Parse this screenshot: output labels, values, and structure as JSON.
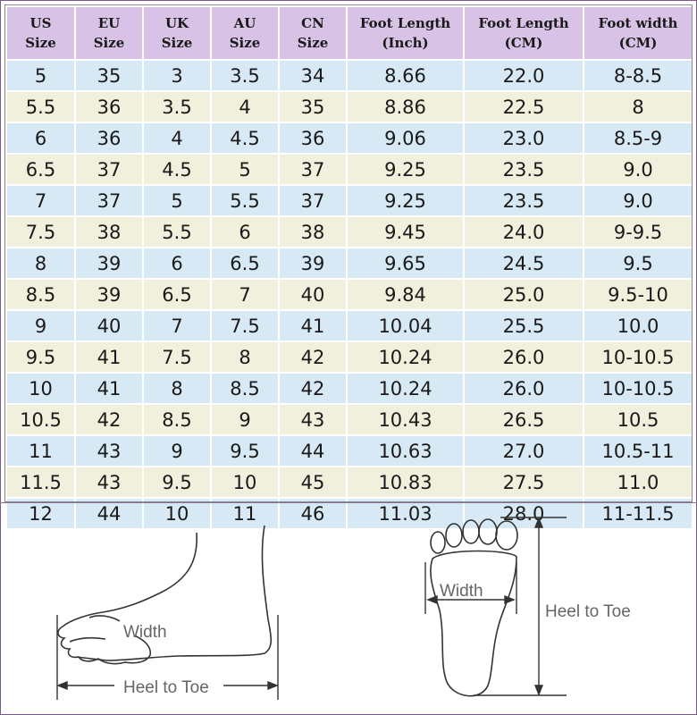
{
  "table": {
    "headers": [
      {
        "line1": "US",
        "line2": "Size"
      },
      {
        "line1": "EU",
        "line2": "Size"
      },
      {
        "line1": "UK",
        "line2": "Size"
      },
      {
        "line1": "AU",
        "line2": "Size"
      },
      {
        "line1": "CN",
        "line2": "Size"
      },
      {
        "line1": "Foot Length",
        "line2": "(Inch)"
      },
      {
        "line1": "Foot Length",
        "line2": "(CM)"
      },
      {
        "line1": "Foot width",
        "line2": "(CM)"
      }
    ],
    "rows": [
      [
        "5",
        "35",
        "3",
        "3.5",
        "34",
        "8.66",
        "22.0",
        "8-8.5"
      ],
      [
        "5.5",
        "36",
        "3.5",
        "4",
        "35",
        "8.86",
        "22.5",
        "8"
      ],
      [
        "6",
        "36",
        "4",
        "4.5",
        "36",
        "9.06",
        "23.0",
        "8.5-9"
      ],
      [
        "6.5",
        "37",
        "4.5",
        "5",
        "37",
        "9.25",
        "23.5",
        "9.0"
      ],
      [
        "7",
        "37",
        "5",
        "5.5",
        "37",
        "9.25",
        "23.5",
        "9.0"
      ],
      [
        "7.5",
        "38",
        "5.5",
        "6",
        "38",
        "9.45",
        "24.0",
        "9-9.5"
      ],
      [
        "8",
        "39",
        "6",
        "6.5",
        "39",
        "9.65",
        "24.5",
        "9.5"
      ],
      [
        "8.5",
        "39",
        "6.5",
        "7",
        "40",
        "9.84",
        "25.0",
        "9.5-10"
      ],
      [
        "9",
        "40",
        "7",
        "7.5",
        "41",
        "10.04",
        "25.5",
        "10.0"
      ],
      [
        "9.5",
        "41",
        "7.5",
        "8",
        "42",
        "10.24",
        "26.0",
        "10-10.5"
      ],
      [
        "10",
        "41",
        "8",
        "8.5",
        "42",
        "10.24",
        "26.0",
        "10-10.5"
      ],
      [
        "10.5",
        "42",
        "8.5",
        "9",
        "43",
        "10.43",
        "26.5",
        "10.5"
      ],
      [
        "11",
        "43",
        "9",
        "9.5",
        "44",
        "10.63",
        "27.0",
        "10.5-11"
      ],
      [
        "11.5",
        "43",
        "9.5",
        "10",
        "45",
        "10.83",
        "27.5",
        "11.0"
      ],
      [
        "12",
        "44",
        "10",
        "11",
        "46",
        "11.03",
        "28.0",
        "11-11.5"
      ]
    ]
  },
  "illustration": {
    "side_width_label": "Width",
    "side_length_label": "Heel to Toe",
    "sole_width_label": "Width",
    "sole_length_label": "Heel to Toe"
  },
  "colors": {
    "header_bg": "#d8c2e6",
    "row_blue": "#d7e9f5",
    "row_cream": "#f0f0dc",
    "border": "#7a5a8e"
  }
}
